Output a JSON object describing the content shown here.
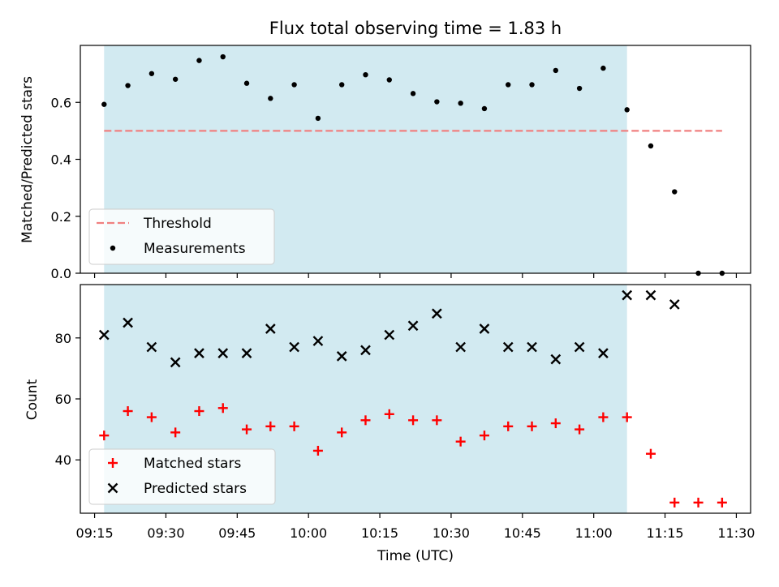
{
  "figure": {
    "title": "Flux total observing time = 1.83 h",
    "xlabel": "Time (UTC)"
  },
  "chart_data": [
    {
      "type": "scatter",
      "panel": "top",
      "ylabel": "Matched/Predicted stars",
      "ylim": [
        0,
        0.8
      ],
      "yticks": [
        0.0,
        0.2,
        0.4,
        0.6
      ],
      "ytick_labels": [
        "0.0",
        "0.2",
        "0.4",
        "0.6"
      ],
      "shaded_span": {
        "start": "09:17",
        "end": "11:07",
        "color": "#add8e6"
      },
      "threshold": {
        "name": "Threshold",
        "value": 0.5,
        "start": "09:17",
        "end": "11:27",
        "color": "#f08080",
        "style": "dashed"
      },
      "series": [
        {
          "name": "Measurements",
          "color": "#000000",
          "marker": "dot",
          "x": [
            "09:17",
            "09:22",
            "09:27",
            "09:32",
            "09:37",
            "09:42",
            "09:47",
            "09:52",
            "09:57",
            "10:02",
            "10:07",
            "10:12",
            "10:17",
            "10:22",
            "10:27",
            "10:32",
            "10:37",
            "10:42",
            "10:47",
            "10:52",
            "10:57",
            "11:02",
            "11:07",
            "11:12",
            "11:17",
            "11:22",
            "11:27"
          ],
          "y": [
            0.593,
            0.659,
            0.701,
            0.681,
            0.747,
            0.76,
            0.667,
            0.614,
            0.662,
            0.544,
            0.662,
            0.697,
            0.679,
            0.631,
            0.602,
            0.597,
            0.578,
            0.662,
            0.662,
            0.712,
            0.649,
            0.72,
            0.574,
            0.447,
            0.286,
            0.0,
            0.0
          ]
        }
      ],
      "legend": {
        "position": "lower-left"
      }
    },
    {
      "type": "scatter",
      "panel": "bottom",
      "ylabel": "Count",
      "ylim": [
        22.5,
        97.5
      ],
      "yticks": [
        40,
        60,
        80
      ],
      "ytick_labels": [
        "40",
        "60",
        "80"
      ],
      "shaded_span": {
        "start": "09:17",
        "end": "11:07",
        "color": "#add8e6"
      },
      "series": [
        {
          "name": "Matched stars",
          "color": "#ff0000",
          "marker": "plus",
          "x": [
            "09:17",
            "09:22",
            "09:27",
            "09:32",
            "09:37",
            "09:42",
            "09:47",
            "09:52",
            "09:57",
            "10:02",
            "10:07",
            "10:12",
            "10:17",
            "10:22",
            "10:27",
            "10:32",
            "10:37",
            "10:42",
            "10:47",
            "10:52",
            "10:57",
            "11:02",
            "11:07",
            "11:12",
            "11:17",
            "11:22",
            "11:27"
          ],
          "y": [
            48,
            56,
            54,
            49,
            56,
            57,
            50,
            51,
            51,
            43,
            49,
            53,
            55,
            53,
            53,
            46,
            48,
            51,
            51,
            52,
            50,
            54,
            54,
            42,
            26,
            26,
            26
          ]
        },
        {
          "name": "Predicted stars",
          "color": "#000000",
          "marker": "x",
          "x": [
            "09:17",
            "09:22",
            "09:27",
            "09:32",
            "09:37",
            "09:42",
            "09:47",
            "09:52",
            "09:57",
            "10:02",
            "10:07",
            "10:12",
            "10:17",
            "10:22",
            "10:27",
            "10:32",
            "10:37",
            "10:42",
            "10:47",
            "10:52",
            "10:57",
            "11:02",
            "11:07",
            "11:12",
            "11:17"
          ],
          "y": [
            81,
            85,
            77,
            72,
            75,
            75,
            75,
            83,
            77,
            79,
            74,
            76,
            81,
            84,
            88,
            77,
            83,
            77,
            77,
            73,
            77,
            75,
            94,
            94,
            91
          ]
        }
      ],
      "legend": {
        "position": "lower-left"
      }
    }
  ],
  "xaxis": {
    "xlim": [
      "09:12",
      "11:33"
    ],
    "ticks": [
      "09:15",
      "09:30",
      "09:45",
      "10:00",
      "10:15",
      "10:30",
      "10:45",
      "11:00",
      "11:15",
      "11:30"
    ]
  }
}
